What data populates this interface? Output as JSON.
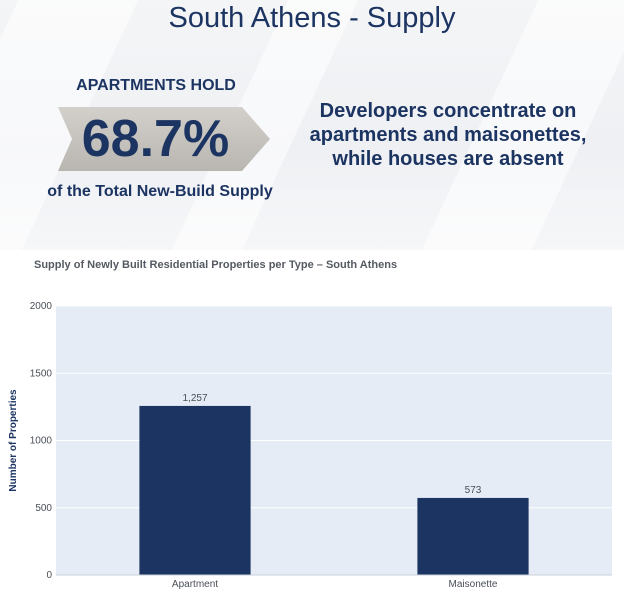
{
  "header": {
    "title": "South Athens - Supply"
  },
  "kpi": {
    "label": "APARTMENTS HOLD",
    "value": "68.7%",
    "caption": "of the Total New-Build Supply"
  },
  "message": {
    "line1": "Developers concentrate on",
    "line2": "apartments and maisonettes,",
    "line3": "while houses are absent"
  },
  "colors": {
    "accent": "#1c3461",
    "bar": "#1c3461",
    "plot_bg": "#e5ecf6",
    "arrow": "#c8c5c0"
  },
  "chart_data": {
    "type": "bar",
    "title": "Supply of Newly Built Residential Properties per Type –  South Athens",
    "categories": [
      "Apartment",
      "Maisonette"
    ],
    "values": [
      1257,
      573
    ],
    "data_labels": [
      "1,257",
      "573"
    ],
    "xlabel": "",
    "ylabel": "Number of Properties",
    "ylim": [
      0,
      2000
    ],
    "yticks": [
      0,
      500,
      1000,
      1500,
      2000
    ],
    "grid": true,
    "legend": "none"
  }
}
